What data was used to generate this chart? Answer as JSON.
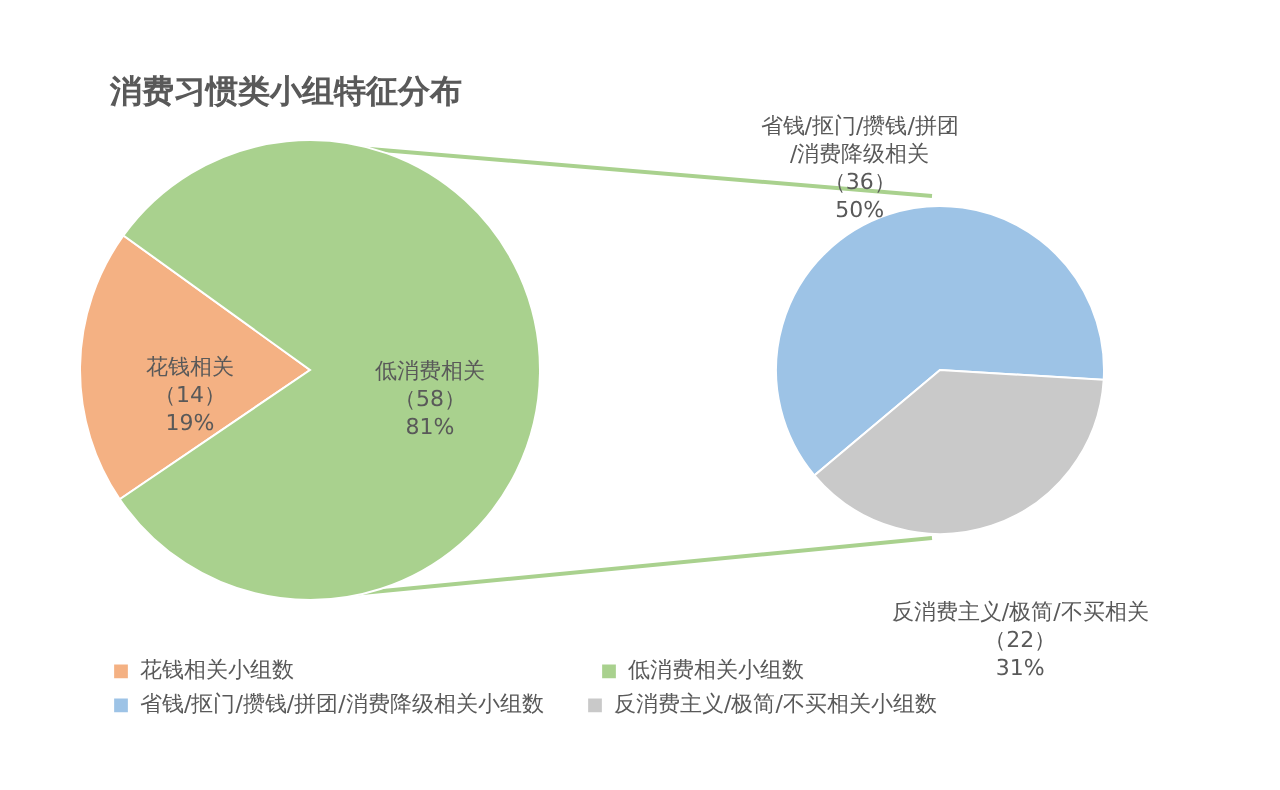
{
  "chart_data": [
    {
      "type": "pie",
      "title": "消费习惯类小组特征分布",
      "categories": [
        "花钱相关小组数",
        "低消费相关小组数"
      ],
      "values": [
        14,
        58
      ],
      "colors": [
        "#f4b183",
        "#a9d18e"
      ],
      "value_labels": [
        "花钱相关（14）19%",
        "低消费相关（58）81%"
      ],
      "legend": "bottom"
    },
    {
      "type": "pie",
      "categories": [
        "省钱/抠门/攒钱/拼团/消费降级相关小组数",
        "反消费主义/极简/不买相关小组数"
      ],
      "values": [
        36,
        22
      ],
      "colors": [
        "#9dc3e6",
        "#c9c9c9"
      ],
      "value_labels": [
        "省钱/抠门/攒钱/拼团/消费降级相关（36）50%",
        "反消费主义/极简/不买相关（22）31%"
      ],
      "legend": "bottom"
    }
  ]
}
